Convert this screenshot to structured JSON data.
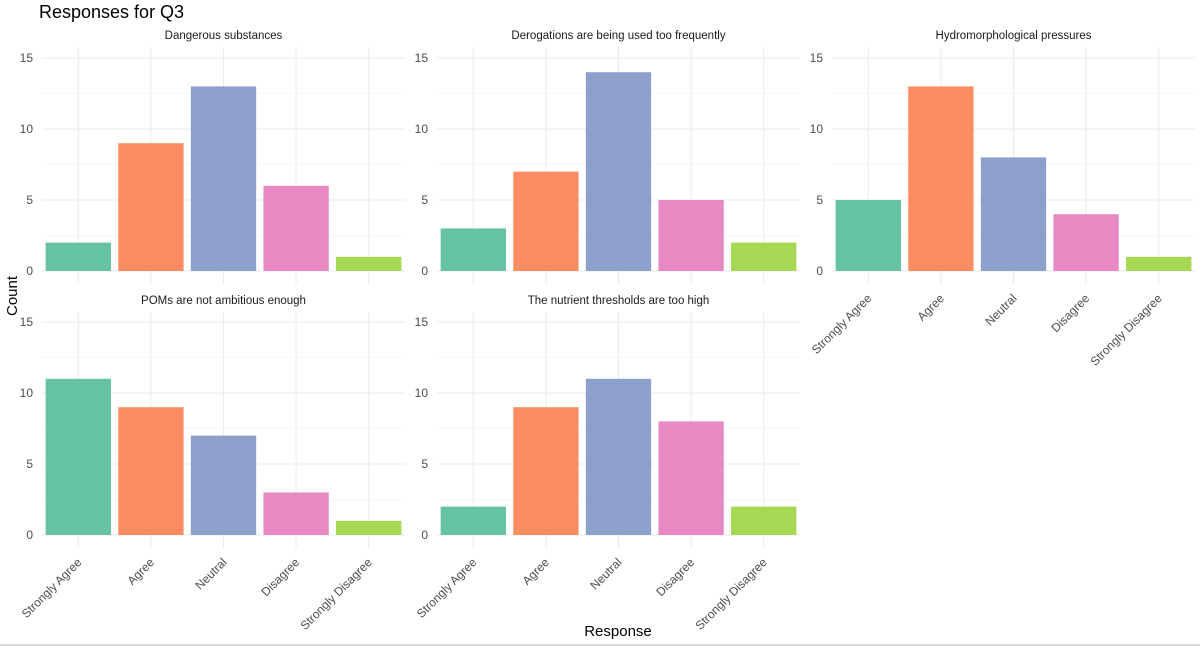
{
  "chart_data": {
    "type": "bar",
    "title": "Responses for Q3",
    "xlabel": "Response",
    "ylabel": "Count",
    "ylim": [
      0,
      15
    ],
    "yticks": [
      0,
      5,
      10,
      15
    ],
    "grid": true,
    "legend": "none",
    "categories": [
      "Strongly Agree",
      "Agree",
      "Neutral",
      "Disagree",
      "Strongly Disagree"
    ],
    "colors": [
      "#66c2a5",
      "#fc8d62",
      "#8da0cb",
      "#e78ac3",
      "#a6d854"
    ],
    "panels": [
      {
        "title": "Dangerous substances",
        "values": [
          2,
          9,
          13,
          6,
          1
        ]
      },
      {
        "title": "Derogations are being used too frequently",
        "values": [
          3,
          7,
          14,
          5,
          2
        ]
      },
      {
        "title": "Hydromorphological pressures",
        "values": [
          5,
          13,
          8,
          4,
          1
        ]
      },
      {
        "title": "POMs are not ambitious enough",
        "values": [
          11,
          9,
          7,
          3,
          1
        ]
      },
      {
        "title": "The nutrient thresholds are too high",
        "values": [
          2,
          9,
          11,
          8,
          2
        ]
      }
    ]
  }
}
